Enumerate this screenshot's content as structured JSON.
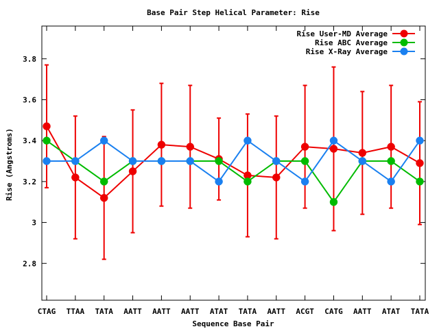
{
  "chart_data": {
    "type": "line",
    "title": "Base Pair Step Helical Parameter: Rise",
    "xlabel": "Sequence Base Pair",
    "ylabel": "Rise (Angstroms)",
    "categories": [
      "CTAG",
      "TTAA",
      "TATA",
      "AATT",
      "AATT",
      "AATT",
      "ATAT",
      "TATA",
      "AATT",
      "ACGT",
      "CATG",
      "AATT",
      "ATAT",
      "TATA"
    ],
    "ylim": [
      2.62,
      3.96
    ],
    "yticks": [
      2.8,
      3,
      3.2,
      3.4,
      3.6,
      3.8
    ],
    "ytick_labels": [
      "2.8",
      "3",
      "3.2",
      "3.4",
      "3.6",
      "3.8"
    ],
    "grid": false,
    "legend_position": "top-right",
    "series": [
      {
        "name": "Rise User-MD Average",
        "color": "#ee0000",
        "values": [
          3.47,
          3.22,
          3.12,
          3.25,
          3.38,
          3.37,
          3.31,
          3.23,
          3.22,
          3.37,
          3.36,
          3.34,
          3.37,
          3.29
        ],
        "error_low": [
          3.17,
          2.92,
          2.82,
          2.95,
          3.08,
          3.07,
          3.11,
          2.93,
          2.92,
          3.07,
          2.96,
          3.04,
          3.07,
          2.99
        ],
        "error_high": [
          3.77,
          3.52,
          3.42,
          3.55,
          3.68,
          3.67,
          3.51,
          3.53,
          3.52,
          3.67,
          3.76,
          3.64,
          3.67,
          3.59
        ]
      },
      {
        "name": "Rise ABC Average",
        "color": "#00bb00",
        "values": [
          3.4,
          3.3,
          3.2,
          3.3,
          3.3,
          3.3,
          3.3,
          3.2,
          3.3,
          3.3,
          3.1,
          3.3,
          3.3,
          3.2
        ]
      },
      {
        "name": "Rise X-Ray Average",
        "color": "#1a80f0",
        "values": [
          3.3,
          3.3,
          3.4,
          3.3,
          3.3,
          3.3,
          3.2,
          3.4,
          3.3,
          3.2,
          3.4,
          3.3,
          3.2,
          3.4
        ]
      }
    ]
  }
}
